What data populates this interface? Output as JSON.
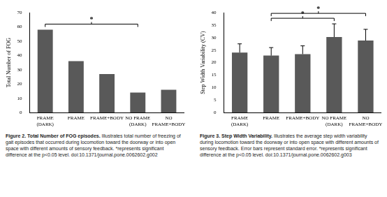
{
  "chart_data": [
    {
      "type": "bar",
      "ylabel": "Total Number of FOG",
      "categories": [
        [
          "FRAME",
          "(DARK)"
        ],
        [
          "FRAME"
        ],
        [
          "FRAME+BODY"
        ],
        [
          "NO FRAME",
          "(DARK)"
        ],
        [
          "NO",
          "FRAME+BODY"
        ]
      ],
      "values": [
        58,
        36,
        27,
        14,
        16
      ],
      "color": "#595959",
      "ylim": [
        0,
        70
      ],
      "yticks": [
        0,
        10,
        20,
        30,
        40,
        50,
        60,
        70
      ],
      "grid": false,
      "significance": [
        {
          "from": 0,
          "to": 3,
          "label": "*"
        }
      ],
      "caption_title": "Figure 2. Total Number of FOG episodes.",
      "caption": "Illustrates total number of freezing of gait episodes that occurred during locomotion toward the doorway or into open space with different amounts of sensory feedback. *represents significant difference at the p<0.05 level. doi:10.1371/journal.pone.0062602.g002"
    },
    {
      "type": "bar",
      "ylabel": "Step Width Variability (CV)",
      "categories": [
        [
          "FRAME",
          "(DARK)"
        ],
        [
          "FRAME"
        ],
        [
          "FRAME+BODY"
        ],
        [
          "NO FRAME",
          "(DARK)"
        ],
        [
          "NO",
          "FRAME+BODY"
        ]
      ],
      "values": [
        24,
        22.8,
        23.4,
        30.2,
        28.8
      ],
      "errors": [
        3.5,
        3.2,
        3.3,
        5.3,
        4.5
      ],
      "color": "#595959",
      "ylim": [
        0,
        40
      ],
      "yticks": [
        0,
        5,
        10,
        15,
        20,
        25,
        30,
        35,
        40
      ],
      "grid": false,
      "significance": [
        {
          "from": 1,
          "to": 3,
          "label": "*"
        },
        {
          "from": 1,
          "to": 4,
          "label": "*"
        }
      ],
      "caption_title": "Figure 3. Step Width Variability.",
      "caption": "Illustrates the average step width variability during locomotion toward the doorway or into open space with different amounts of sensory feedback. Error bars represent standard error. *represents significant difference at the p<0.05 level. doi:10.1371/journal.pone.0062602.g003"
    }
  ]
}
